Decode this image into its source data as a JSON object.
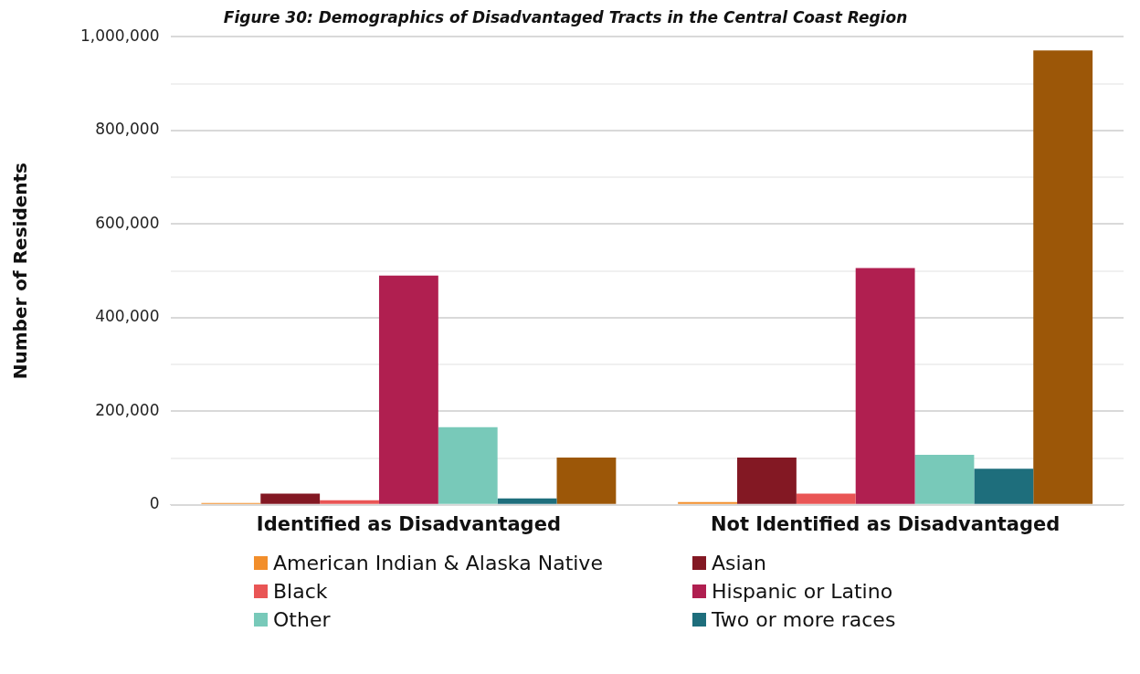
{
  "chart_data": {
    "type": "bar",
    "title": "Figure 30: Demographics of Disadvantaged Tracts in the Central Coast Region",
    "ylabel": "Number of Residents",
    "categories": [
      "Identified as Disadvantaged",
      "Not Identified as Disadvantaged"
    ],
    "series": [
      {
        "name": "American Indian & Alaska Native",
        "color": "#f28e2b",
        "values": [
          4000,
          6000
        ]
      },
      {
        "name": "Asian",
        "color": "#831823",
        "values": [
          24000,
          101000
        ]
      },
      {
        "name": "Black",
        "color": "#e95555",
        "values": [
          10000,
          24000
        ]
      },
      {
        "name": "Hispanic or Latino",
        "color": "#b01f50",
        "values": [
          490000,
          506000
        ]
      },
      {
        "name": "Other",
        "color": "#78c9b9",
        "values": [
          166000,
          107000
        ]
      },
      {
        "name": "Two or more races",
        "color": "#1e6e7c",
        "values": [
          14000,
          77000
        ]
      },
      {
        "color": "#9c5708",
        "values": [
          101000,
          971000
        ]
      }
    ],
    "ylim": [
      0,
      1000000
    ],
    "yticks": [
      0,
      {
        "value": 100000,
        "label": null
      },
      {
        "value": 200000,
        "label": "200,000"
      },
      {
        "value": 300000,
        "label": null
      },
      {
        "value": 400000,
        "label": "400,000"
      },
      {
        "value": 500000,
        "label": null
      },
      {
        "value": 600000,
        "label": "600,000"
      },
      {
        "value": 700000,
        "label": null
      },
      {
        "value": 800000,
        "label": "800,000"
      },
      {
        "value": 900000,
        "label": null
      },
      {
        "value": 1000000,
        "label": "1,000,000"
      }
    ],
    "grid": true,
    "legend": "bottom"
  }
}
